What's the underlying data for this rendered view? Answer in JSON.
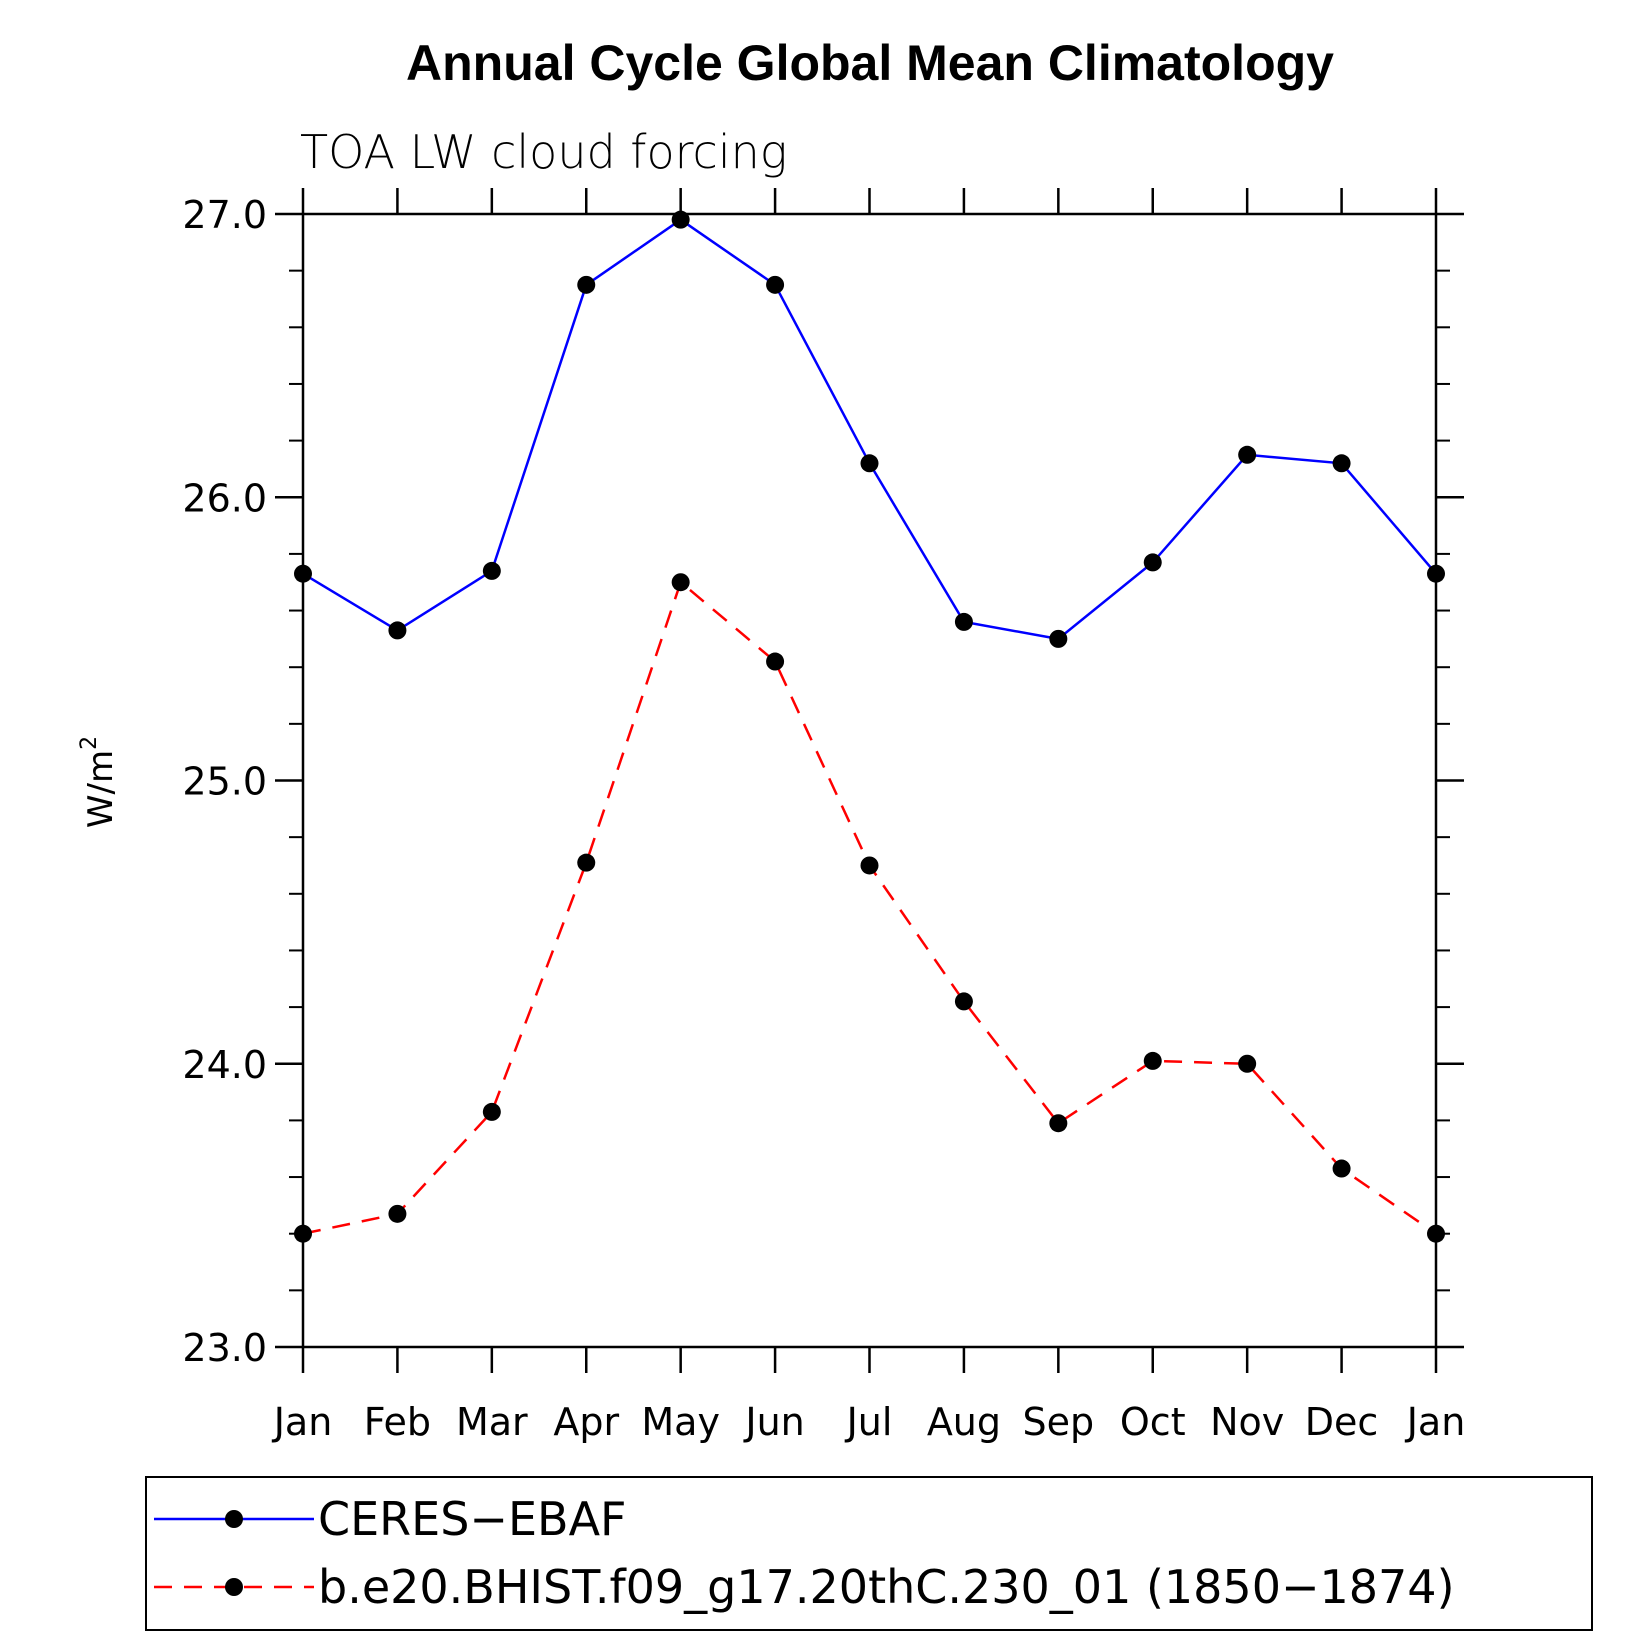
{
  "chart_data": {
    "type": "line",
    "title": "Annual Cycle Global Mean Climatology",
    "subtitle": "TOA LW cloud forcing",
    "ylabel": "W/m",
    "ylabel_superscript": "2",
    "xlabel": "",
    "ylim": [
      23.0,
      27.0
    ],
    "yticks": [
      "23.0",
      "24.0",
      "25.0",
      "26.0",
      "27.0"
    ],
    "yticks_values": [
      23.0,
      24.0,
      25.0,
      26.0,
      27.0
    ],
    "categories": [
      "Jan",
      "Feb",
      "Mar",
      "Apr",
      "May",
      "Jun",
      "Jul",
      "Aug",
      "Sep",
      "Oct",
      "Nov",
      "Dec",
      "Jan"
    ],
    "series": [
      {
        "name": "CERES−EBAF",
        "color": "#0000ff",
        "dash": "solid",
        "values": [
          25.73,
          25.53,
          25.74,
          26.75,
          26.98,
          26.75,
          26.12,
          25.56,
          25.5,
          25.77,
          26.15,
          26.12,
          25.73
        ]
      },
      {
        "name": "b.e20.BHIST.f09_g17.20thC.230_01 (1850−1874)",
        "color": "#ff0000",
        "dash": "dashed",
        "values": [
          23.4,
          23.47,
          23.83,
          24.71,
          25.7,
          25.42,
          24.7,
          24.22,
          23.79,
          24.01,
          24.0,
          23.63,
          23.4
        ]
      }
    ],
    "grid": false,
    "legend_position": "bottom"
  }
}
